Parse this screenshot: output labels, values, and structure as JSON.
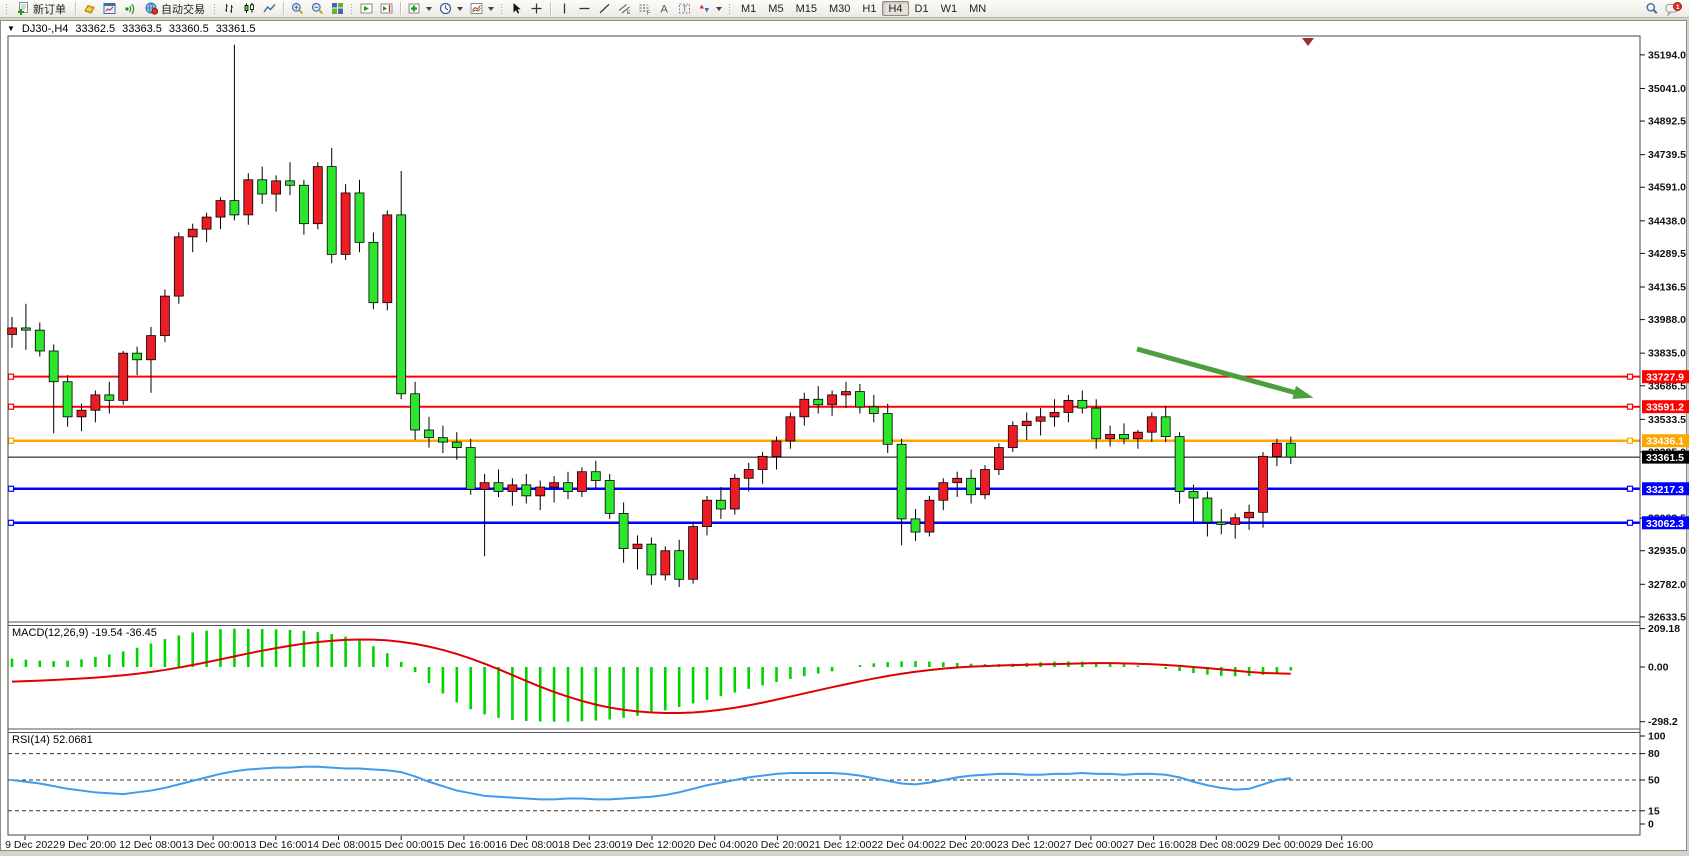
{
  "toolbar": {
    "new_order_label": "新订单",
    "autotrade_label": "自动交易",
    "icons": [
      "new-order-icon",
      "gold-ingot-icon",
      "new-chart-icon",
      "signal-icon",
      "auto-trading-icon",
      "bar-chart-icon",
      "candlestick-icon",
      "line-chart-icon",
      "zoom-in-icon",
      "zoom-out-icon",
      "tile-windows-icon",
      "auto-scroll-icon",
      "chart-shift-icon",
      "add-indicator-icon",
      "timeframes-icon",
      "templates-icon",
      "cursor-icon",
      "crosshair-icon",
      "vertical-line-icon",
      "horizontal-line-icon",
      "trendline-icon",
      "equidistant-channel-icon",
      "fibonacci-icon",
      "text-icon",
      "label-icon",
      "arrows-icon",
      "search-icon",
      "chat-icon"
    ],
    "timeframes": [
      "M1",
      "M5",
      "M15",
      "M30",
      "H1",
      "H4",
      "D1",
      "W1",
      "MN"
    ],
    "active_timeframe": "H4",
    "notification_count": "1"
  },
  "chart_window": {
    "title": {
      "symbol_period": "DJ30-,H4",
      "open": "33362.5",
      "high": "33363.5",
      "low": "33360.5",
      "close": "33361.5"
    }
  },
  "time_axis": [
    "9 Dec 2022",
    "9 Dec 20:00",
    "12 Dec 08:00",
    "13 Dec 00:00",
    "13 Dec 16:00",
    "14 Dec 08:00",
    "15 Dec 00:00",
    "15 Dec 16:00",
    "16 Dec 08:00",
    "18 Dec 23:00",
    "19 Dec 12:00",
    "20 Dec 04:00",
    "20 Dec 20:00",
    "21 Dec 12:00",
    "22 Dec 04:00",
    "22 Dec 20:00",
    "23 Dec 12:00",
    "27 Dec 00:00",
    "27 Dec 16:00",
    "28 Dec 08:00",
    "29 Dec 00:00",
    "29 Dec 16:00"
  ],
  "chart_data": [
    {
      "type": "candlestick",
      "title": "DJ30-,H4",
      "colors": {
        "bull": "#ed1c24",
        "bear": "#2ee52e",
        "wick": "#000000"
      },
      "y_axis_ticks": [
        "35194.0",
        "35041.0",
        "34892.5",
        "34739.5",
        "34591.0",
        "34438.0",
        "34289.5",
        "34136.5",
        "33988.0",
        "33835.0",
        "33686.5",
        "33533.5",
        "33385.0",
        "33083.5",
        "32935.0",
        "32782.0",
        "32633.5"
      ],
      "price_lines": [
        {
          "value": 33727.9,
          "color": "#ff0000",
          "width": 2
        },
        {
          "value": 33591.2,
          "color": "#ff0000",
          "width": 2
        },
        {
          "value": 33436.1,
          "color": "#ffa500",
          "width": 2.5
        },
        {
          "value": 33217.3,
          "color": "#0000ff",
          "width": 2.5
        },
        {
          "value": 33062.3,
          "color": "#0000ff",
          "width": 2.5
        }
      ],
      "current_price": {
        "value": 33361.5,
        "color": "#000000"
      },
      "arrow_annotation": {
        "from": [
          1137,
          349
        ],
        "to": [
          1300,
          394
        ],
        "color": "#4d9e3e"
      },
      "candles": [
        [
          33920,
          34000,
          33860,
          33950
        ],
        [
          33950,
          34060,
          33850,
          33940
        ],
        [
          33940,
          33975,
          33820,
          33845
        ],
        [
          33845,
          33875,
          33470,
          33705
        ],
        [
          33705,
          33735,
          33500,
          33545
        ],
        [
          33545,
          33605,
          33480,
          33575
        ],
        [
          33575,
          33665,
          33520,
          33645
        ],
        [
          33645,
          33705,
          33560,
          33620
        ],
        [
          33620,
          33845,
          33600,
          33835
        ],
        [
          33835,
          33865,
          33735,
          33805
        ],
        [
          33805,
          33955,
          33655,
          33915
        ],
        [
          33915,
          34125,
          33885,
          34095
        ],
        [
          34095,
          34385,
          34060,
          34365
        ],
        [
          34365,
          34425,
          34295,
          34400
        ],
        [
          34400,
          34475,
          34340,
          34455
        ],
        [
          34455,
          34545,
          34400,
          34530
        ],
        [
          34530,
          35240,
          34440,
          34465
        ],
        [
          34465,
          34655,
          34420,
          34625
        ],
        [
          34625,
          34685,
          34515,
          34560
        ],
        [
          34560,
          34645,
          34480,
          34620
        ],
        [
          34620,
          34705,
          34555,
          34600
        ],
        [
          34600,
          34625,
          34375,
          34425
        ],
        [
          34425,
          34705,
          34400,
          34685
        ],
        [
          34685,
          34770,
          34245,
          34285
        ],
        [
          34285,
          34605,
          34260,
          34565
        ],
        [
          34565,
          34625,
          34295,
          34340
        ],
        [
          34340,
          34385,
          34035,
          34065
        ],
        [
          34065,
          34485,
          34030,
          34465
        ],
        [
          34465,
          34665,
          33625,
          33650
        ],
        [
          33650,
          33705,
          33440,
          33485
        ],
        [
          33485,
          33545,
          33405,
          33450
        ],
        [
          33450,
          33505,
          33380,
          33430
        ],
        [
          33430,
          33475,
          33350,
          33405
        ],
        [
          33405,
          33445,
          33190,
          33215
        ],
        [
          33215,
          33285,
          32910,
          33245
        ],
        [
          33245,
          33305,
          33180,
          33205
        ],
        [
          33205,
          33265,
          33140,
          33235
        ],
        [
          33235,
          33285,
          33150,
          33185
        ],
        [
          33185,
          33255,
          33120,
          33225
        ],
        [
          33225,
          33275,
          33155,
          33245
        ],
        [
          33245,
          33295,
          33170,
          33205
        ],
        [
          33205,
          33315,
          33180,
          33295
        ],
        [
          33295,
          33345,
          33220,
          33255
        ],
        [
          33255,
          33285,
          33080,
          33105
        ],
        [
          33105,
          33155,
          32880,
          32945
        ],
        [
          32945,
          33005,
          32850,
          32965
        ],
        [
          32965,
          32995,
          32780,
          32825
        ],
        [
          32825,
          32955,
          32800,
          32935
        ],
        [
          32935,
          32985,
          32770,
          32805
        ],
        [
          32805,
          33065,
          32785,
          33045
        ],
        [
          33045,
          33185,
          33005,
          33165
        ],
        [
          33165,
          33225,
          33080,
          33125
        ],
        [
          33125,
          33285,
          33100,
          33265
        ],
        [
          33265,
          33335,
          33205,
          33305
        ],
        [
          33305,
          33385,
          33240,
          33365
        ],
        [
          33365,
          33455,
          33305,
          33435
        ],
        [
          33435,
          33565,
          33400,
          33545
        ],
        [
          33545,
          33655,
          33505,
          33625
        ],
        [
          33625,
          33685,
          33560,
          33600
        ],
        [
          33600,
          33665,
          33550,
          33645
        ],
        [
          33645,
          33705,
          33585,
          33660
        ],
        [
          33660,
          33695,
          33560,
          33590
        ],
        [
          33590,
          33645,
          33520,
          33560
        ],
        [
          33560,
          33605,
          33380,
          33420
        ],
        [
          33420,
          33445,
          32960,
          33080
        ],
        [
          33080,
          33125,
          32980,
          33020
        ],
        [
          33020,
          33185,
          33000,
          33165
        ],
        [
          33165,
          33265,
          33120,
          33245
        ],
        [
          33245,
          33295,
          33180,
          33265
        ],
        [
          33265,
          33305,
          33150,
          33190
        ],
        [
          33190,
          33325,
          33170,
          33305
        ],
        [
          33305,
          33425,
          33280,
          33405
        ],
        [
          33405,
          33525,
          33385,
          33505
        ],
        [
          33505,
          33565,
          33440,
          33525
        ],
        [
          33525,
          33585,
          33460,
          33545
        ],
        [
          33545,
          33625,
          33500,
          33565
        ],
        [
          33565,
          33645,
          33520,
          33620
        ],
        [
          33620,
          33665,
          33560,
          33585
        ],
        [
          33585,
          33625,
          33400,
          33445
        ],
        [
          33445,
          33505,
          33410,
          33465
        ],
        [
          33465,
          33515,
          33420,
          33445
        ],
        [
          33445,
          33485,
          33400,
          33475
        ],
        [
          33475,
          33565,
          33430,
          33545
        ],
        [
          33545,
          33595,
          33430,
          33455
        ],
        [
          33455,
          33475,
          33150,
          33205
        ],
        [
          33205,
          33235,
          33060,
          33175
        ],
        [
          33175,
          33205,
          33000,
          33065
        ],
        [
          33065,
          33125,
          33010,
          33055
        ],
        [
          33055,
          33105,
          32990,
          33085
        ],
        [
          33085,
          33145,
          33030,
          33110
        ],
        [
          33110,
          33385,
          33040,
          33365
        ],
        [
          33365,
          33445,
          33320,
          33425
        ],
        [
          33425,
          33455,
          33330,
          33361.5
        ]
      ]
    },
    {
      "type": "bar",
      "name": "MACD",
      "label": "MACD(12,26,9) -19.54 -36.45",
      "axis_ticks": [
        "209.18",
        "0.00",
        "-298.2"
      ],
      "histogram_color": "#00d400",
      "signal_color": "#e00000",
      "values": [
        45,
        40,
        35,
        32,
        35,
        42,
        55,
        68,
        85,
        105,
        128,
        152,
        172,
        188,
        198,
        206,
        209,
        208,
        207,
        205,
        202,
        197,
        190,
        180,
        165,
        143,
        113,
        75,
        28,
        -28,
        -88,
        -145,
        -193,
        -230,
        -258,
        -277,
        -289,
        -294,
        -297,
        -298,
        -298,
        -296,
        -292,
        -286,
        -277,
        -266,
        -252,
        -236,
        -218,
        -199,
        -179,
        -159,
        -139,
        -119,
        -100,
        -82,
        -65,
        -50,
        -36,
        -24,
        0,
        10,
        20,
        27,
        31,
        32,
        30,
        26,
        22,
        18,
        16,
        16,
        18,
        22,
        26,
        29,
        30,
        29,
        26,
        22,
        16,
        8,
        -1,
        -11,
        -22,
        -33,
        -42,
        -48,
        -51,
        -49,
        -43,
        -33,
        -19.54
      ],
      "signal": [
        -80,
        -77,
        -74,
        -71,
        -67,
        -63,
        -58,
        -52,
        -45,
        -37,
        -27,
        -16,
        -3,
        11,
        26,
        42,
        58,
        74,
        89,
        103,
        116,
        127,
        136,
        143,
        148,
        150,
        149,
        145,
        137,
        126,
        111,
        93,
        71,
        46,
        18,
        -12,
        -44,
        -76,
        -107,
        -136,
        -162,
        -185,
        -205,
        -221,
        -233,
        -242,
        -248,
        -251,
        -251,
        -248,
        -242,
        -233,
        -222,
        -209,
        -194,
        -178,
        -161,
        -144,
        -127,
        -110,
        -94,
        -78,
        -63,
        -49,
        -37,
        -26,
        -17,
        -9,
        -3,
        2,
        5,
        8,
        10,
        12,
        14,
        16,
        18,
        20,
        21,
        21,
        20,
        18,
        15,
        11,
        6,
        0,
        -6,
        -13,
        -20,
        -27,
        -32,
        -35,
        -36.45
      ]
    },
    {
      "type": "line",
      "name": "RSI",
      "label": "RSI(14) 52.0681",
      "axis_ticks": [
        "100",
        "80",
        "50",
        "15",
        "0"
      ],
      "level_lines": [
        80,
        50,
        15
      ],
      "line_color": "#3f9bec",
      "values": [
        50,
        48,
        46,
        43,
        40,
        38,
        36,
        35,
        34,
        36,
        38,
        41,
        45,
        49,
        53,
        57,
        60,
        62,
        63,
        64,
        64,
        65,
        65,
        64,
        63,
        63,
        62,
        61,
        59,
        54,
        48,
        43,
        38,
        35,
        32,
        31,
        30,
        29,
        28,
        28,
        29,
        29,
        28,
        28,
        29,
        30,
        31,
        33,
        36,
        40,
        44,
        47,
        50,
        53,
        55,
        57,
        58,
        58,
        58,
        58,
        57,
        55,
        52,
        49,
        46,
        45,
        47,
        50,
        53,
        55,
        56,
        57,
        57,
        56,
        56,
        57,
        57,
        58,
        57,
        57,
        56,
        57,
        57,
        56,
        53,
        48,
        44,
        41,
        39,
        40,
        45,
        50,
        52.07
      ]
    }
  ]
}
